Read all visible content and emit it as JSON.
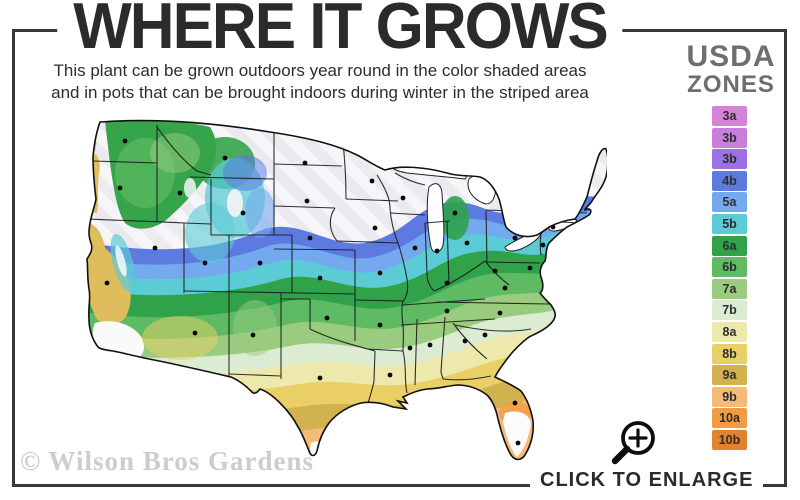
{
  "title": "WHERE IT GROWS",
  "subtitle": {
    "line1": "This plant can be grown outdoors year round in the color shaded areas",
    "line2": "and in pots that can be brought indoors during winter in the striped area"
  },
  "legend": {
    "heading_line1": "USDA",
    "heading_line2": "ZONES",
    "zones": [
      {
        "label": "3a",
        "color": "#d583d6"
      },
      {
        "label": "3b",
        "color": "#c97edb"
      },
      {
        "label": "3b",
        "color": "#9c71e6"
      },
      {
        "label": "4b",
        "color": "#5d7ae1"
      },
      {
        "label": "5a",
        "color": "#74a9f0"
      },
      {
        "label": "5b",
        "color": "#5bcbd5"
      },
      {
        "label": "6a",
        "color": "#2fa24a"
      },
      {
        "label": "6b",
        "color": "#5eba63"
      },
      {
        "label": "7a",
        "color": "#99cc7f"
      },
      {
        "label": "7b",
        "color": "#dcecd3"
      },
      {
        "label": "8a",
        "color": "#ede9ad"
      },
      {
        "label": "8b",
        "color": "#e9cf66"
      },
      {
        "label": "9a",
        "color": "#d1b24e"
      },
      {
        "label": "9b",
        "color": "#f4ba78"
      },
      {
        "label": "10a",
        "color": "#f19b43"
      },
      {
        "label": "10b",
        "color": "#e2822f"
      }
    ]
  },
  "map": {
    "striped_area_meaning": "striped area",
    "icons": {
      "enlarge_icon": "magnifier-plus"
    }
  },
  "watermark": "© Wilson Bros Gardens",
  "enlarge_label": "CLICK TO ENLARGE"
}
